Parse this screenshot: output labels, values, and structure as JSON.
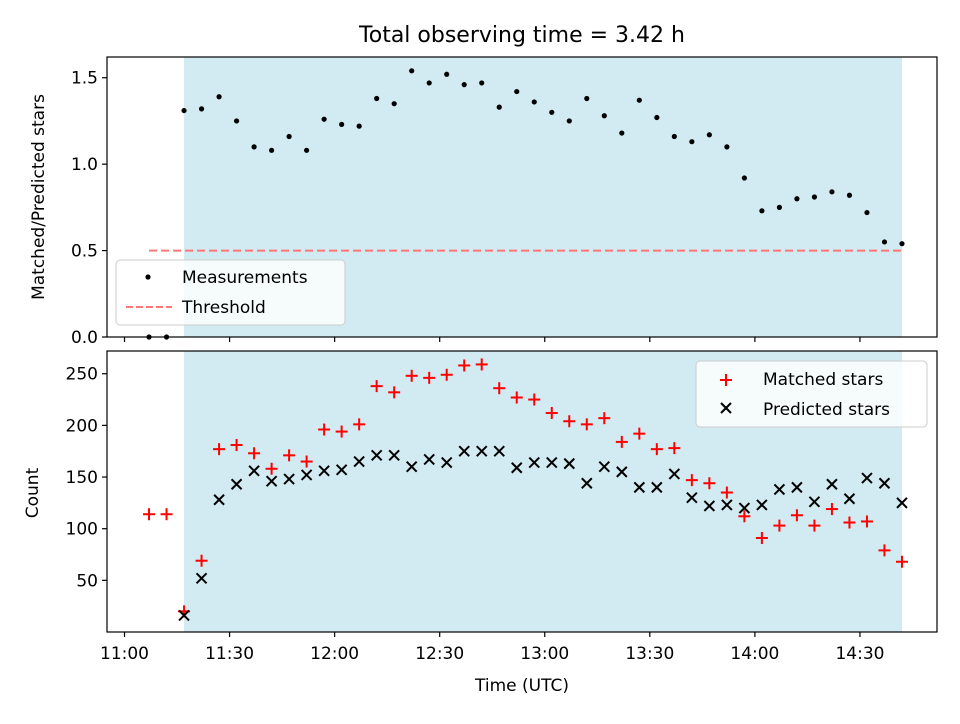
{
  "chart_data": [
    {
      "type": "scatter",
      "title": "Total observing time = 3.42 h",
      "ylabel": "Matched/Predicted stars",
      "ylim": [
        0,
        1.62
      ],
      "yticks": [
        "0.0",
        "0.5",
        "1.0",
        "1.5"
      ],
      "shaded_interval": [
        "11:17",
        "14:42"
      ],
      "legend": "lower-left",
      "series": [
        {
          "name": "Measurements",
          "color": "#000000",
          "marker": "dot",
          "x": [
            "11:07",
            "11:12",
            "11:17",
            "11:22",
            "11:27",
            "11:32",
            "11:37",
            "11:42",
            "11:47",
            "11:52",
            "11:57",
            "12:02",
            "12:07",
            "12:12",
            "12:17",
            "12:22",
            "12:27",
            "12:32",
            "12:37",
            "12:42",
            "12:47",
            "12:52",
            "12:57",
            "13:02",
            "13:07",
            "13:12",
            "13:17",
            "13:22",
            "13:27",
            "13:32",
            "13:37",
            "13:42",
            "13:47",
            "13:52",
            "13:57",
            "14:02",
            "14:07",
            "14:12",
            "14:17",
            "14:22",
            "14:27",
            "14:32",
            "14:37",
            "14:42"
          ],
          "y": [
            0.0,
            0.0,
            1.31,
            1.32,
            1.39,
            1.25,
            1.1,
            1.08,
            1.16,
            1.08,
            1.26,
            1.23,
            1.22,
            1.38,
            1.35,
            1.54,
            1.47,
            1.52,
            1.46,
            1.47,
            1.33,
            1.42,
            1.36,
            1.3,
            1.25,
            1.38,
            1.28,
            1.18,
            1.37,
            1.27,
            1.16,
            1.13,
            1.17,
            1.1,
            0.92,
            0.73,
            0.75,
            0.8,
            0.81,
            0.84,
            0.82,
            0.72,
            0.55,
            0.54
          ]
        },
        {
          "name": "Threshold",
          "color": "#ff7777",
          "style": "dashed",
          "x": [
            "11:07",
            "14:42"
          ],
          "y": [
            0.5,
            0.5
          ]
        }
      ]
    },
    {
      "type": "scatter",
      "xlabel": "Time (UTC)",
      "ylabel": "Count",
      "ylim": [
        0,
        272
      ],
      "yticks": [
        "50",
        "100",
        "150",
        "200",
        "250"
      ],
      "xticks": [
        "11:00",
        "11:30",
        "12:00",
        "12:30",
        "13:00",
        "13:30",
        "14:00",
        "14:30"
      ],
      "shaded_interval": [
        "11:17",
        "14:42"
      ],
      "legend": "top-right",
      "series": [
        {
          "name": "Matched stars",
          "color": "#ff0000",
          "marker": "plus",
          "x": [
            "11:07",
            "11:12",
            "11:17",
            "11:22",
            "11:27",
            "11:32",
            "11:37",
            "11:42",
            "11:47",
            "11:52",
            "11:57",
            "12:02",
            "12:07",
            "12:12",
            "12:17",
            "12:22",
            "12:27",
            "12:32",
            "12:37",
            "12:42",
            "12:47",
            "12:52",
            "12:57",
            "13:02",
            "13:07",
            "13:12",
            "13:17",
            "13:22",
            "13:27",
            "13:32",
            "13:37",
            "13:42",
            "13:47",
            "13:52",
            "13:57",
            "14:02",
            "14:07",
            "14:12",
            "14:17",
            "14:22",
            "14:27",
            "14:32",
            "14:37",
            "14:42"
          ],
          "y": [
            114,
            114,
            20,
            69,
            177,
            181,
            173,
            158,
            171,
            165,
            196,
            194,
            201,
            238,
            232,
            248,
            246,
            249,
            258,
            259,
            236,
            227,
            225,
            212,
            204,
            201,
            207,
            184,
            192,
            177,
            178,
            147,
            144,
            135,
            112,
            91,
            103,
            113,
            103,
            119,
            106,
            107,
            79,
            68
          ]
        },
        {
          "name": "Predicted stars",
          "color": "#000000",
          "marker": "x",
          "x": [
            "11:17",
            "11:22",
            "11:27",
            "11:32",
            "11:37",
            "11:42",
            "11:47",
            "11:52",
            "11:57",
            "12:02",
            "12:07",
            "12:12",
            "12:17",
            "12:22",
            "12:27",
            "12:32",
            "12:37",
            "12:42",
            "12:47",
            "12:52",
            "12:57",
            "13:02",
            "13:07",
            "13:12",
            "13:17",
            "13:22",
            "13:27",
            "13:32",
            "13:37",
            "13:42",
            "13:47",
            "13:52",
            "13:57",
            "14:02",
            "14:07",
            "14:12",
            "14:17",
            "14:22",
            "14:27",
            "14:32",
            "14:37",
            "14:42"
          ],
          "y": [
            16,
            52,
            128,
            143,
            156,
            146,
            148,
            152,
            156,
            157,
            165,
            171,
            171,
            160,
            167,
            164,
            175,
            175,
            175,
            159,
            164,
            164,
            163,
            144,
            160,
            155,
            140,
            140,
            153,
            130,
            122,
            123,
            120,
            123,
            138,
            140,
            126,
            143,
            129,
            149,
            144,
            125
          ]
        }
      ]
    }
  ]
}
